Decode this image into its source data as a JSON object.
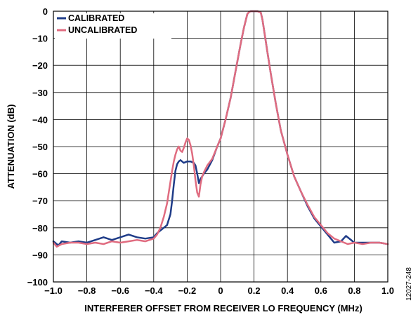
{
  "chart_data": {
    "type": "line",
    "xlabel": "INTERFERER OFFSET FROM RECEIVER LO FREQUENCY (MHz)",
    "ylabel": "ATTENUATION (dB)",
    "xlim": [
      -1.0,
      1.0
    ],
    "ylim": [
      -100,
      0
    ],
    "x_ticks": [
      -1.0,
      -0.8,
      -0.6,
      -0.4,
      -0.2,
      0,
      0.2,
      0.4,
      0.6,
      0.8,
      1.0
    ],
    "x_tick_labels": [
      "−1.0",
      "−0.8",
      "−0.6",
      "−0.4",
      "−0.2",
      "0",
      "0.2",
      "0.4",
      "0.6",
      "0.8",
      "1.0"
    ],
    "y_ticks": [
      0,
      -10,
      -20,
      -30,
      -40,
      -50,
      -60,
      -70,
      -80,
      -90,
      -100
    ],
    "y_tick_labels": [
      "0",
      "−10",
      "−20",
      "−30",
      "−40",
      "−50",
      "−60",
      "−70",
      "−80",
      "−90",
      "−100"
    ],
    "grid": true,
    "legend_position": "top-left",
    "figure_id": "12027-248",
    "series": [
      {
        "name": "CALIBRATED",
        "color": "#1f3c88",
        "x": [
          -1.0,
          -0.97,
          -0.95,
          -0.9,
          -0.85,
          -0.8,
          -0.75,
          -0.7,
          -0.65,
          -0.6,
          -0.55,
          -0.5,
          -0.45,
          -0.4,
          -0.38,
          -0.36,
          -0.34,
          -0.32,
          -0.3,
          -0.29,
          -0.28,
          -0.27,
          -0.26,
          -0.25,
          -0.24,
          -0.22,
          -0.2,
          -0.18,
          -0.16,
          -0.15,
          -0.14,
          -0.13,
          -0.12,
          -0.1,
          -0.08,
          -0.05,
          -0.02,
          0.0,
          0.03,
          0.06,
          0.09,
          0.12,
          0.14,
          0.16,
          0.17,
          0.18,
          0.2,
          0.22,
          0.24,
          0.25,
          0.26,
          0.28,
          0.3,
          0.33,
          0.36,
          0.4,
          0.44,
          0.48,
          0.52,
          0.56,
          0.6,
          0.64,
          0.68,
          0.72,
          0.75,
          0.8,
          0.85,
          0.9,
          0.95,
          1.0
        ],
        "y": [
          -85,
          -86.5,
          -85,
          -85.5,
          -85,
          -85.5,
          -84.5,
          -83.5,
          -84.5,
          -83.5,
          -82.5,
          -83.5,
          -84,
          -83.5,
          -82,
          -81,
          -80,
          -79,
          -75,
          -70,
          -64,
          -59,
          -56.5,
          -55.5,
          -55,
          -56,
          -55.5,
          -55.5,
          -56,
          -57,
          -60,
          -63.5,
          -62,
          -60,
          -58.5,
          -55,
          -50,
          -47,
          -40,
          -32,
          -22,
          -12,
          -6,
          -1,
          -0.3,
          0,
          0,
          0,
          -0.4,
          -3,
          -7,
          -15,
          -23,
          -34,
          -44,
          -53,
          -61,
          -66.5,
          -72,
          -76.5,
          -79.5,
          -82.5,
          -85.5,
          -85,
          -83,
          -85.5,
          -85.5,
          -85.5,
          -85.5,
          -86
        ]
      },
      {
        "name": "UNCALIBRATED",
        "color": "#e06c80",
        "x": [
          -1.0,
          -0.98,
          -0.95,
          -0.9,
          -0.85,
          -0.8,
          -0.75,
          -0.7,
          -0.65,
          -0.6,
          -0.55,
          -0.5,
          -0.45,
          -0.4,
          -0.38,
          -0.36,
          -0.34,
          -0.32,
          -0.31,
          -0.3,
          -0.29,
          -0.28,
          -0.27,
          -0.26,
          -0.25,
          -0.24,
          -0.23,
          -0.22,
          -0.21,
          -0.2,
          -0.19,
          -0.18,
          -0.17,
          -0.16,
          -0.15,
          -0.14,
          -0.13,
          -0.12,
          -0.11,
          -0.1,
          -0.08,
          -0.05,
          -0.02,
          0.0,
          0.03,
          0.06,
          0.09,
          0.12,
          0.14,
          0.16,
          0.17,
          0.18,
          0.2,
          0.22,
          0.24,
          0.25,
          0.26,
          0.28,
          0.3,
          0.33,
          0.36,
          0.4,
          0.44,
          0.48,
          0.52,
          0.56,
          0.6,
          0.64,
          0.68,
          0.72,
          0.76,
          0.8,
          0.85,
          0.9,
          0.95,
          1.0
        ],
        "y": [
          -85.5,
          -87,
          -86,
          -85.5,
          -85.5,
          -86,
          -85.5,
          -86,
          -85,
          -85.5,
          -85,
          -84.5,
          -85,
          -84,
          -82.5,
          -80,
          -76,
          -71,
          -67,
          -63,
          -59,
          -55.5,
          -53,
          -51,
          -50,
          -51.5,
          -52,
          -50.5,
          -48.5,
          -47,
          -47.5,
          -49.5,
          -52.5,
          -57,
          -62.5,
          -67,
          -68.5,
          -64,
          -61,
          -59.5,
          -57,
          -54.5,
          -50,
          -47,
          -40,
          -32,
          -22,
          -12,
          -6,
          -1,
          -0.3,
          0,
          0,
          0,
          -0.4,
          -3,
          -7,
          -15,
          -23,
          -34,
          -44,
          -53,
          -61,
          -66.5,
          -71.5,
          -76,
          -79,
          -82,
          -84,
          -85,
          -86,
          -85.5,
          -86,
          -85.5,
          -85.5,
          -86
        ]
      }
    ]
  }
}
